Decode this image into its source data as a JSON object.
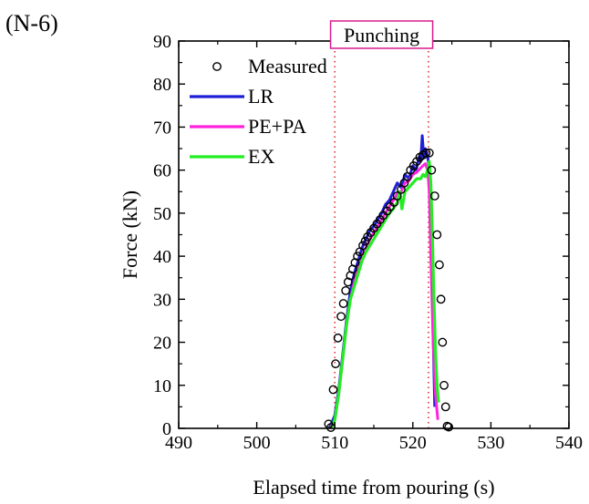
{
  "panel_label": "(N-6)",
  "colors": {
    "LR": "#1f1fd6",
    "PE+PA": "#ff22dd",
    "EX": "#22ee22",
    "measured": "#000000",
    "guide": "#e03030",
    "annotation_border": "#d81b8c"
  },
  "chart_data": {
    "type": "line",
    "title": "",
    "xlabel": "Elapsed time from pouring (s)",
    "ylabel": "Force (kN)",
    "xlim": [
      490,
      540
    ],
    "ylim": [
      0,
      90
    ],
    "xticks": [
      490,
      500,
      510,
      520,
      530,
      540
    ],
    "yticks": [
      0,
      10,
      20,
      30,
      40,
      50,
      60,
      70,
      80,
      90
    ],
    "grid": false,
    "legend_position": "top-left",
    "annotation": {
      "text": "Punching",
      "guide_lines_x": [
        510,
        522
      ]
    },
    "series": [
      {
        "name": "Measured",
        "kind": "scatter",
        "x": [
          509.2,
          509.5,
          509.8,
          510.1,
          510.4,
          510.8,
          511.1,
          511.4,
          511.7,
          512.0,
          512.3,
          512.6,
          512.9,
          513.2,
          513.6,
          513.9,
          514.2,
          514.6,
          515.0,
          515.4,
          515.8,
          516.2,
          516.7,
          517.1,
          517.6,
          518.0,
          518.5,
          518.9,
          519.3,
          519.7,
          520.1,
          520.5,
          520.9,
          521.3,
          521.7,
          522.1,
          522.4,
          522.8,
          523.1,
          523.4,
          523.6,
          523.8,
          524.0,
          524.2,
          524.4,
          524.6
        ],
        "y": [
          1.0,
          0.2,
          9.0,
          15.0,
          21.0,
          26.0,
          29.0,
          32.0,
          34.0,
          35.5,
          37.0,
          38.5,
          40.0,
          41.0,
          42.5,
          43.5,
          44.5,
          45.5,
          46.5,
          47.5,
          48.5,
          49.5,
          50.5,
          51.5,
          52.5,
          54.0,
          55.5,
          57.0,
          58.5,
          60.0,
          61.0,
          62.0,
          63.0,
          63.5,
          64.0,
          64.0,
          60.0,
          54.0,
          45.0,
          38.0,
          30.0,
          20.0,
          10.0,
          5.0,
          0.5,
          0.3
        ]
      },
      {
        "name": "LR",
        "kind": "line",
        "x": [
          509.3,
          510.0,
          510.5,
          511.0,
          511.5,
          512.0,
          512.5,
          513.0,
          513.5,
          514.0,
          514.5,
          515.0,
          515.5,
          516.0,
          516.5,
          517.0,
          517.5,
          518.0,
          518.5,
          519.0,
          519.5,
          520.0,
          520.4,
          520.8,
          521.0,
          521.2,
          521.4,
          521.6,
          521.8,
          522.0,
          522.2,
          522.5,
          522.8
        ],
        "y": [
          0,
          3,
          9,
          17,
          25,
          32,
          36,
          39,
          42,
          44,
          46,
          47,
          48.5,
          50,
          52,
          53,
          55,
          57,
          56,
          59,
          58,
          61,
          60,
          63,
          62,
          68,
          63,
          65,
          64,
          62,
          55,
          30,
          5
        ]
      },
      {
        "name": "PE+PA",
        "kind": "line",
        "x": [
          509.4,
          510.0,
          510.5,
          511.0,
          511.5,
          512.0,
          512.5,
          513.0,
          513.5,
          514.0,
          514.5,
          515.0,
          515.5,
          516.0,
          516.5,
          517.0,
          517.5,
          518.0,
          518.5,
          519.0,
          519.5,
          520.0,
          520.5,
          521.0,
          521.3,
          521.6,
          521.9,
          522.1,
          522.3,
          522.6,
          522.9,
          523.2
        ],
        "y": [
          0,
          2,
          8,
          16,
          24,
          30,
          34,
          37,
          40,
          42,
          44,
          45.5,
          47,
          48.5,
          50,
          51.5,
          53,
          54.5,
          55,
          57,
          57.5,
          59,
          59.5,
          60.5,
          61,
          61.5,
          60,
          55,
          40,
          20,
          8,
          2
        ]
      },
      {
        "name": "EX",
        "kind": "line",
        "x": [
          509.5,
          510.0,
          510.5,
          511.0,
          511.5,
          512.0,
          512.5,
          513.0,
          513.5,
          514.0,
          514.5,
          515.0,
          515.5,
          516.0,
          516.5,
          517.0,
          517.5,
          518.0,
          518.3,
          518.6,
          519.0,
          519.5,
          520.0,
          520.5,
          521.0,
          521.3,
          521.6,
          521.9,
          522.1,
          522.3,
          522.5,
          522.7,
          522.9,
          523.1,
          523.3
        ],
        "y": [
          0,
          2,
          8,
          16,
          24,
          30,
          33,
          36,
          39,
          41,
          42.5,
          44,
          45.5,
          47,
          48.5,
          50,
          51,
          52.5,
          55,
          51,
          55,
          56,
          57,
          58,
          58,
          59,
          58.5,
          60,
          62,
          57,
          45,
          30,
          18,
          10,
          6
        ]
      }
    ]
  }
}
